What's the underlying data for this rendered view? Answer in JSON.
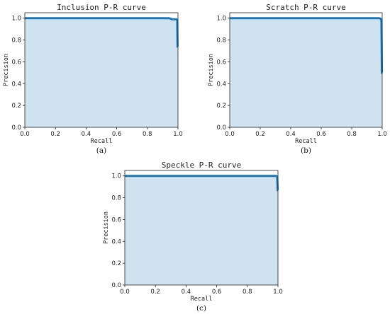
{
  "chart_data": [
    {
      "type": "area",
      "title": "Inclusion P-R curve",
      "xlabel": "Recall",
      "ylabel": "Precision",
      "panel_label": "(a)",
      "xlim": [
        0,
        1
      ],
      "ylim": [
        0,
        1.05
      ],
      "x_ticks": [
        "0.0",
        "0.2",
        "0.4",
        "0.6",
        "0.8",
        "1.0"
      ],
      "y_ticks": [
        "0.0",
        "0.2",
        "0.4",
        "0.6",
        "0.8",
        "1.0"
      ],
      "series": [
        {
          "x": [
            0,
            0.5,
            0.94,
            0.955,
            0.96,
            0.99,
            0.995,
            0.997,
            1.0
          ],
          "y": [
            1.0,
            1.0,
            1.0,
            0.995,
            0.99,
            0.99,
            0.98,
            0.74,
            0.74
          ]
        }
      ]
    },
    {
      "type": "area",
      "title": "Scratch P-R curve",
      "xlabel": "Recall",
      "ylabel": "Precision",
      "panel_label": "(b)",
      "xlim": [
        0,
        1
      ],
      "ylim": [
        0,
        1.05
      ],
      "x_ticks": [
        "0.0",
        "0.2",
        "0.4",
        "0.6",
        "0.8",
        "1.0"
      ],
      "y_ticks": [
        "0.0",
        "0.2",
        "0.4",
        "0.6",
        "0.8",
        "1.0"
      ],
      "series": [
        {
          "x": [
            0,
            0.5,
            0.98,
            0.99,
            0.995,
            0.998,
            1.0
          ],
          "y": [
            1.0,
            1.0,
            1.0,
            0.995,
            0.98,
            0.5,
            0.5
          ]
        }
      ]
    },
    {
      "type": "area",
      "title": "Speckle P-R curve",
      "xlabel": "Recall",
      "ylabel": "Precision",
      "panel_label": "(c)",
      "xlim": [
        0,
        1
      ],
      "ylim": [
        0,
        1.05
      ],
      "x_ticks": [
        "0.0",
        "0.2",
        "0.4",
        "0.6",
        "0.8",
        "1.0"
      ],
      "y_ticks": [
        "0.0",
        "0.2",
        "0.4",
        "0.6",
        "0.8",
        "1.0"
      ],
      "series": [
        {
          "x": [
            0,
            0.5,
            0.99,
            0.995,
            0.998,
            1.0
          ],
          "y": [
            1.0,
            1.0,
            1.0,
            0.99,
            0.87,
            0.87
          ]
        }
      ]
    }
  ],
  "style": {
    "line_color": "#1f77b4",
    "fill_color": "#cfe2ef",
    "axis_color": "#222222"
  }
}
